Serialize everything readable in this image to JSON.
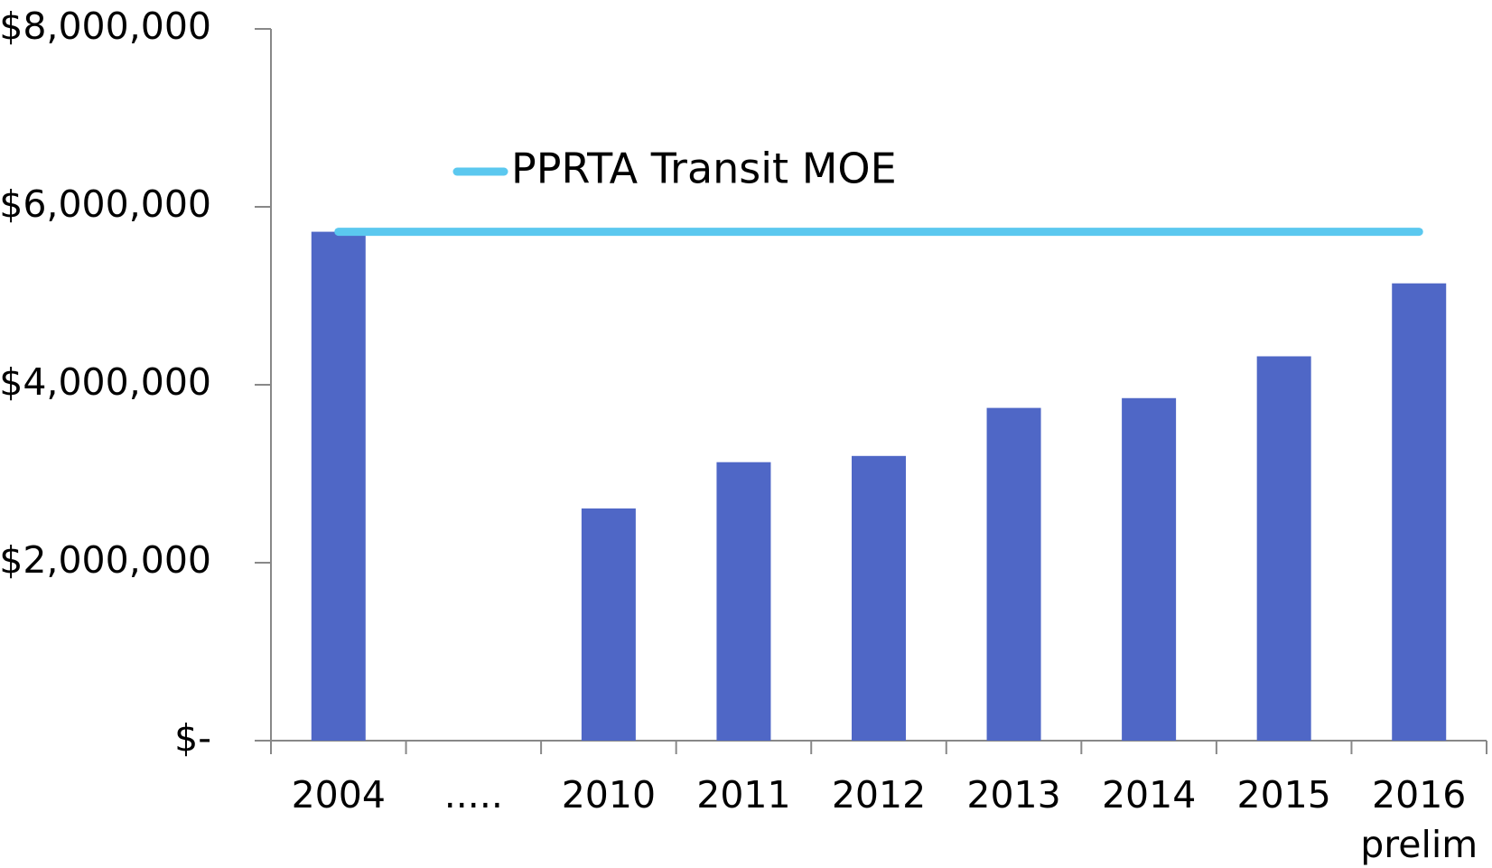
{
  "chart_data": {
    "type": "bar",
    "categories": [
      "2004",
      ".....",
      "2010",
      "2011",
      "2012",
      "2013",
      "2014",
      "2015",
      "2016 prelim"
    ],
    "series": [
      {
        "color": "#4f67c6",
        "values": [
          5720000,
          null,
          2610000,
          3130000,
          3200000,
          3740000,
          3850000,
          4320000,
          5140000
        ]
      },
      {
        "name": "PPRTA Transit MOE",
        "type": "line",
        "color": "#5bc8ef",
        "values": [
          5720000,
          5720000,
          5720000,
          5720000,
          5720000,
          5720000,
          5720000,
          5720000,
          5720000
        ]
      }
    ],
    "ylim": [
      0,
      8000000
    ],
    "yticks": [
      {
        "value": 0,
        "label": "$-"
      },
      {
        "value": 2000000,
        "label": "$2,000,000"
      },
      {
        "value": 4000000,
        "label": "$4,000,000"
      },
      {
        "value": 6000000,
        "label": "$6,000,000"
      },
      {
        "value": 8000000,
        "label": "$8,000,000"
      }
    ],
    "grid": false,
    "legend": "top-left"
  }
}
